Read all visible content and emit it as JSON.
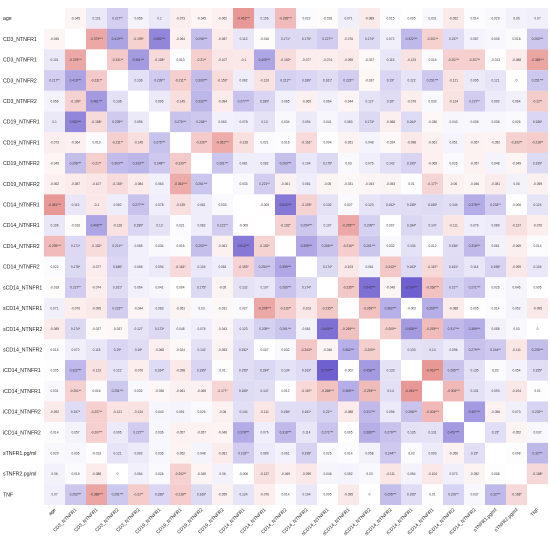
{
  "chart_data": {
    "type": "heatmap",
    "title": "",
    "labels": [
      "age",
      "CD3_NTNFR1",
      "CD3_NTNFR1",
      "CD3_NTNFR2",
      "CD3_NTNFR2",
      "CD19_NTNFR1",
      "CD19_NTNFR1",
      "CD19_NTNFR2",
      "CD19_NTNFR2",
      "CD14_NTNFR1",
      "CD14_NTNFR1",
      "CD14_NTNFR2",
      "CD14_NTNFR2",
      "sCD14_NTNFR1",
      "sCD14_NTNFR1",
      "sCD14_NTNFR2",
      "sCD14_NTNFR2",
      "iCD14_NTNFR1",
      "iCD14_NTNFR1",
      "iCD14_NTNFR2",
      "iCD14_NTNFR2",
      "sTNFR1.pg/ml",
      "sTNFR2.pg/ml",
      "TNF"
    ],
    "color_scale": {
      "negative": "#d9534f",
      "positive": "#6a5acd",
      "zero": "#ffffff",
      "range": [
        -1,
        1
      ]
    },
    "grid": false,
    "values": [
      [
        null,
        -0.045,
        0.101,
        0.217,
        0.056,
        0.1,
        -0.073,
        -0.045,
        -0.062,
        -0.451,
        0.106,
        -0.295,
        0.022,
        -0.018,
        0.071,
        -0.089,
        0.015,
        0.005,
        0.031,
        -0.092,
        0.014,
        0.029,
        0.06,
        0.07
      ],
      [
        -0.045,
        null,
        -0.379,
        0.419,
        -0.199,
        0.552,
        -0.064,
        0.296,
        -0.087,
        0.113,
        -0.016,
        0.171,
        0.175,
        0.227,
        -0.076,
        0.174,
        0.072,
        0.322,
        -0.201,
        0.157,
        0.057,
        0.035,
        0.018,
        0.253
      ],
      [
        0.101,
        -0.379,
        null,
        -0.231,
        0.461,
        -0.158,
        0.013,
        -0.21,
        -0.107,
        -0.1,
        0.409,
        -0.152,
        -0.077,
        -0.074,
        -0.095,
        -0.027,
        0.115,
        -0.123,
        0.016,
        -0.207,
        -0.207,
        -0.013,
        -0.088,
        -0.388
      ],
      [
        0.217,
        0.419,
        -0.231,
        null,
        0.136,
        0.239,
        -0.211,
        0.303,
        -0.153,
        0.082,
        -0.126,
        0.211,
        0.186,
        0.161,
        0.223,
        -0.037,
        0.19,
        0.122,
        0.251,
        -0.121,
        0.095,
        0.121,
        0.0,
        0.251
      ],
      [
        0.056,
        -0.199,
        0.461,
        0.136,
        null,
        0.096,
        -0.145,
        0.333,
        -0.084,
        0.277,
        0.189,
        0.065,
        -0.065,
        0.064,
        -0.044,
        0.127,
        0.16,
        -0.076,
        0.032,
        -0.124,
        0.227,
        0.092,
        0.064,
        -0.22
      ],
      [
        0.1,
        0.552,
        -0.158,
        0.239,
        0.096,
        null,
        0.275,
        0.248,
        0.063,
        0.078,
        0.13,
        0.034,
        0.094,
        0.041,
        0.083,
        0.173,
        -0.068,
        0.164,
        -0.036,
        0.043,
        0.036,
        0.036,
        0.026,
        0.186
      ],
      [
        -0.073,
        -0.064,
        0.013,
        -0.211,
        -0.145,
        0.275,
        null,
        -0.226,
        -0.361,
        -0.135,
        0.021,
        0.016,
        -0.161,
        0.004,
        -0.051,
        0.048,
        -0.024,
        -0.098,
        -0.061,
        0.051,
        -0.057,
        -0.052,
        -0.202,
        -0.218
      ],
      [
        -0.045,
        0.296,
        -0.21,
        0.303,
        0.333,
        0.248,
        -0.226,
        null,
        0.261,
        0.081,
        0.082,
        0.293,
        0.104,
        0.175,
        0.03,
        0.076,
        0.142,
        0.195,
        -0.065,
        0.026,
        -0.057,
        0.048,
        -0.049,
        0.169
      ],
      [
        -0.062,
        -0.087,
        -0.107,
        -0.153,
        -0.084,
        0.063,
        -0.361,
        0.261,
        null,
        0.033,
        0.221,
        -0.061,
        0.081,
        -0.05,
        -0.031,
        -0.043,
        -0.053,
        0.01,
        -0.177,
        -0.06,
        -0.046,
        -0.081,
        0.06,
        -0.059
      ],
      [
        -0.451,
        0.113,
        -0.1,
        0.082,
        0.277,
        0.078,
        -0.135,
        0.081,
        0.033,
        null,
        -0.009,
        0.612,
        -0.193,
        0.132,
        0.027,
        0.123,
        0.152,
        0.155,
        0.165,
        0.144,
        0.378,
        0.232,
        -0.006,
        0.124
      ],
      [
        0.106,
        -0.016,
        0.409,
        -0.126,
        0.189,
        0.13,
        0.021,
        0.082,
        0.221,
        -0.009,
        null,
        -0.192,
        0.254,
        0.107,
        -0.378,
        0.209,
        0.007,
        0.184,
        0.147,
        -0.111,
        0.076,
        0.089,
        -0.137,
        -0.076
      ],
      [
        -0.295,
        0.171,
        -0.152,
        0.211,
        0.065,
        0.034,
        0.016,
        0.293,
        -0.061,
        0.612,
        -0.192,
        null,
        0.399,
        0.266,
        -0.216,
        0.261,
        0.032,
        0.134,
        0.012,
        0.156,
        0.318,
        0.061,
        -0.069,
        0.014
      ],
      [
        0.022,
        0.175,
        -0.077,
        0.186,
        0.065,
        0.094,
        -0.161,
        0.104,
        0.081,
        -0.193,
        0.254,
        0.399,
        null,
        0.174,
        -0.103,
        0.061,
        -0.243,
        0.163,
        -0.167,
        0.161,
        0.114,
        0.198,
        -0.099,
        0.104
      ],
      [
        -0.018,
        0.227,
        -0.074,
        0.161,
        0.064,
        0.041,
        0.004,
        0.175,
        -0.05,
        0.132,
        0.107,
        0.266,
        0.174,
        null,
        -0.235,
        0.645,
        -0.046,
        0.724,
        -0.266,
        0.21,
        0.271,
        0.026,
        0.046,
        0.005
      ],
      [
        0.071,
        -0.076,
        -0.095,
        0.223,
        -0.044,
        0.083,
        -0.051,
        0.03,
        -0.031,
        0.027,
        -0.378,
        -0.216,
        -0.103,
        -0.235,
        null,
        -0.269,
        0.362,
        -0.002,
        0.369,
        -0.088,
        0.005,
        0.014,
        0.052,
        -0.095
      ],
      [
        -0.089,
        0.174,
        -0.027,
        -0.037,
        0.127,
        0.173,
        0.048,
        0.076,
        -0.043,
        0.123,
        0.209,
        0.261,
        0.061,
        0.645,
        -0.269,
        null,
        -0.209,
        0.458,
        -0.293,
        0.317,
        0.369,
        0.058,
        0.03,
        0.0
      ],
      [
        0.015,
        0.072,
        0.115,
        0.19,
        0.16,
        -0.068,
        -0.024,
        0.142,
        -0.053,
        0.152,
        0.007,
        0.032,
        -0.243,
        -0.046,
        0.362,
        -0.209,
        null,
        0.133,
        0.14,
        0.096,
        0.279,
        0.244,
        -0.111,
        0.295
      ],
      [
        0.005,
        0.322,
        -0.123,
        0.122,
        -0.076,
        0.164,
        -0.098,
        0.195,
        0.01,
        0.155,
        0.184,
        0.134,
        0.163,
        0.724,
        -0.002,
        0.458,
        0.133,
        null,
        -0.451,
        0.266,
        0.135,
        0.02,
        0.054,
        0.155
      ],
      [
        0.031,
        -0.201,
        0.016,
        0.251,
        0.032,
        -0.036,
        -0.061,
        -0.065,
        -0.177,
        0.165,
        0.147,
        0.012,
        -0.167,
        -0.266,
        0.369,
        -0.293,
        0.14,
        -0.451,
        null,
        -0.304,
        0.131,
        0.093,
        -0.104,
        0.01
      ],
      [
        -0.092,
        0.157,
        -0.207,
        -0.121,
        -0.124,
        0.043,
        0.051,
        0.026,
        -0.06,
        0.144,
        -0.111,
        0.156,
        0.161,
        0.21,
        -0.088,
        0.317,
        0.096,
        0.266,
        -0.304,
        null,
        0.457,
        -0.056,
        0.073,
        0.202
      ],
      [
        0.014,
        0.057,
        -0.207,
        0.095,
        0.227,
        0.036,
        -0.057,
        -0.057,
        -0.046,
        0.378,
        0.076,
        0.318,
        0.114,
        0.271,
        0.005,
        0.369,
        0.279,
        0.135,
        0.131,
        0.457,
        null,
        0.15,
        -0.052,
        0.037
      ],
      [
        0.029,
        0.035,
        -0.013,
        0.121,
        0.092,
        0.036,
        -0.052,
        0.048,
        -0.081,
        0.232,
        0.089,
        0.061,
        0.198,
        0.026,
        0.014,
        0.058,
        0.244,
        0.02,
        0.093,
        -0.056,
        0.15,
        null,
        0.008,
        0.32
      ],
      [
        0.06,
        0.018,
        -0.088,
        0.0,
        0.064,
        0.026,
        -0.202,
        -0.049,
        0.06,
        -0.006,
        -0.137,
        -0.069,
        -0.099,
        0.046,
        0.052,
        0.03,
        -0.111,
        0.054,
        -0.104,
        0.073,
        -0.052,
        0.008,
        null,
        -0.168
      ],
      [
        0.07,
        0.253,
        -0.388,
        0.251,
        -0.22,
        0.186,
        -0.218,
        0.169,
        -0.059,
        0.124,
        -0.076,
        0.014,
        0.104,
        0.005,
        -0.095,
        0.0,
        0.295,
        0.155,
        0.01,
        0.202,
        0.037,
        0.32,
        -0.168,
        null
      ]
    ]
  }
}
